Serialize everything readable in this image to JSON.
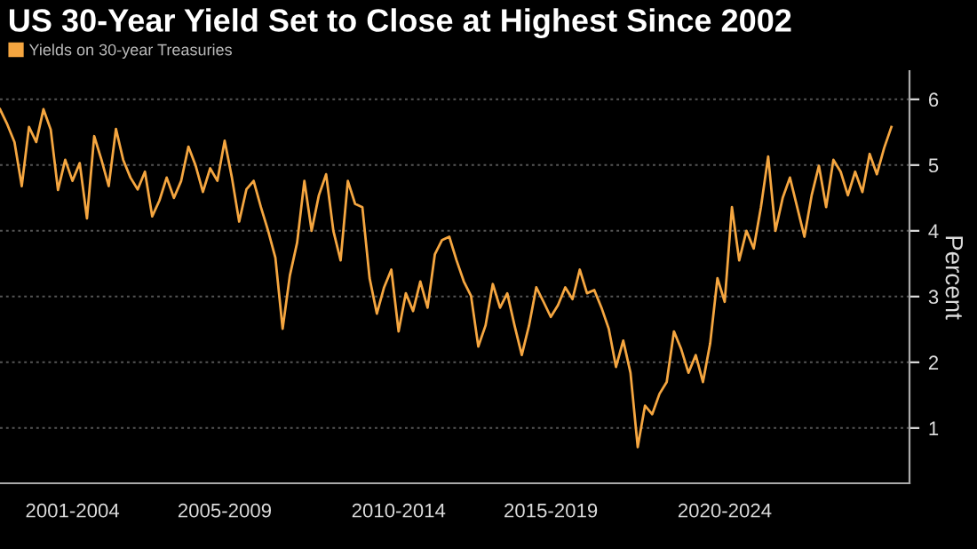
{
  "chart_data": {
    "type": "line",
    "title": "US 30-Year Yield Set to Close at Highest Since 2002",
    "ylabel": "Percent",
    "legend": "top left",
    "grid": "y",
    "marker": "none",
    "line_style": "solid",
    "ylim": [
      0.16,
      6.43
    ],
    "yticks": [
      1,
      2,
      3,
      4,
      5,
      6
    ],
    "categories": [
      null,
      null,
      null,
      null,
      null,
      null,
      null,
      null,
      null,
      null,
      "2001-2004",
      null,
      null,
      null,
      null,
      null,
      null,
      null,
      null,
      null,
      null,
      null,
      null,
      null,
      null,
      null,
      null,
      null,
      null,
      null,
      null,
      "2005-2009",
      null,
      null,
      null,
      null,
      null,
      null,
      null,
      null,
      null,
      null,
      null,
      null,
      null,
      null,
      null,
      null,
      null,
      null,
      null,
      null,
      null,
      null,
      null,
      "2010-2014",
      null,
      null,
      null,
      null,
      null,
      null,
      null,
      null,
      null,
      null,
      null,
      null,
      null,
      null,
      null,
      null,
      null,
      null,
      null,
      null,
      "2015-2019",
      null,
      null,
      null,
      null,
      null,
      null,
      null,
      null,
      null,
      null,
      null,
      null,
      null,
      null,
      null,
      null,
      null,
      null,
      null,
      null,
      null,
      null,
      null,
      "2020-2024",
      null,
      null,
      null,
      null,
      null,
      null,
      null,
      null,
      null,
      null,
      null,
      null,
      null,
      null,
      null,
      null,
      null,
      null,
      null,
      null,
      null,
      null,
      null
    ],
    "series": [
      {
        "name": "Yields on 30-year Treasuries",
        "color": "#f5a640",
        "values": [
          5.85,
          5.62,
          5.35,
          4.68,
          5.58,
          5.35,
          5.85,
          5.54,
          4.62,
          5.08,
          4.76,
          5.03,
          4.19,
          5.44,
          5.08,
          4.68,
          5.55,
          5.08,
          4.81,
          4.63,
          4.9,
          4.22,
          4.46,
          4.81,
          4.5,
          4.76,
          5.28,
          4.99,
          4.59,
          4.95,
          4.76,
          5.37,
          4.81,
          4.14,
          4.63,
          4.76,
          4.36,
          4.0,
          3.59,
          2.51,
          3.32,
          3.82,
          4.76,
          4.0,
          4.54,
          4.86,
          4.0,
          3.55,
          4.76,
          4.41,
          4.36,
          3.28,
          2.74,
          3.14,
          3.41,
          2.47,
          3.05,
          2.78,
          3.23,
          2.83,
          3.64,
          3.86,
          3.91,
          3.55,
          3.23,
          3.01,
          2.24,
          2.56,
          3.19,
          2.83,
          3.05,
          2.56,
          2.11,
          2.56,
          3.14,
          2.92,
          2.69,
          2.87,
          3.14,
          2.96,
          3.41,
          3.05,
          3.1,
          2.83,
          2.51,
          1.93,
          2.33,
          1.84,
          0.71,
          1.34,
          1.21,
          1.52,
          1.7,
          2.47,
          2.2,
          1.84,
          2.11,
          1.7,
          2.29,
          3.28,
          2.92,
          4.36,
          3.55,
          4.0,
          3.73,
          4.36,
          5.13,
          4.0,
          4.5,
          4.81,
          4.36,
          3.91,
          4.54,
          4.99,
          4.36,
          5.08,
          4.9,
          4.54,
          4.9,
          4.59,
          5.17,
          4.86,
          5.26,
          5.58
        ]
      }
    ]
  }
}
